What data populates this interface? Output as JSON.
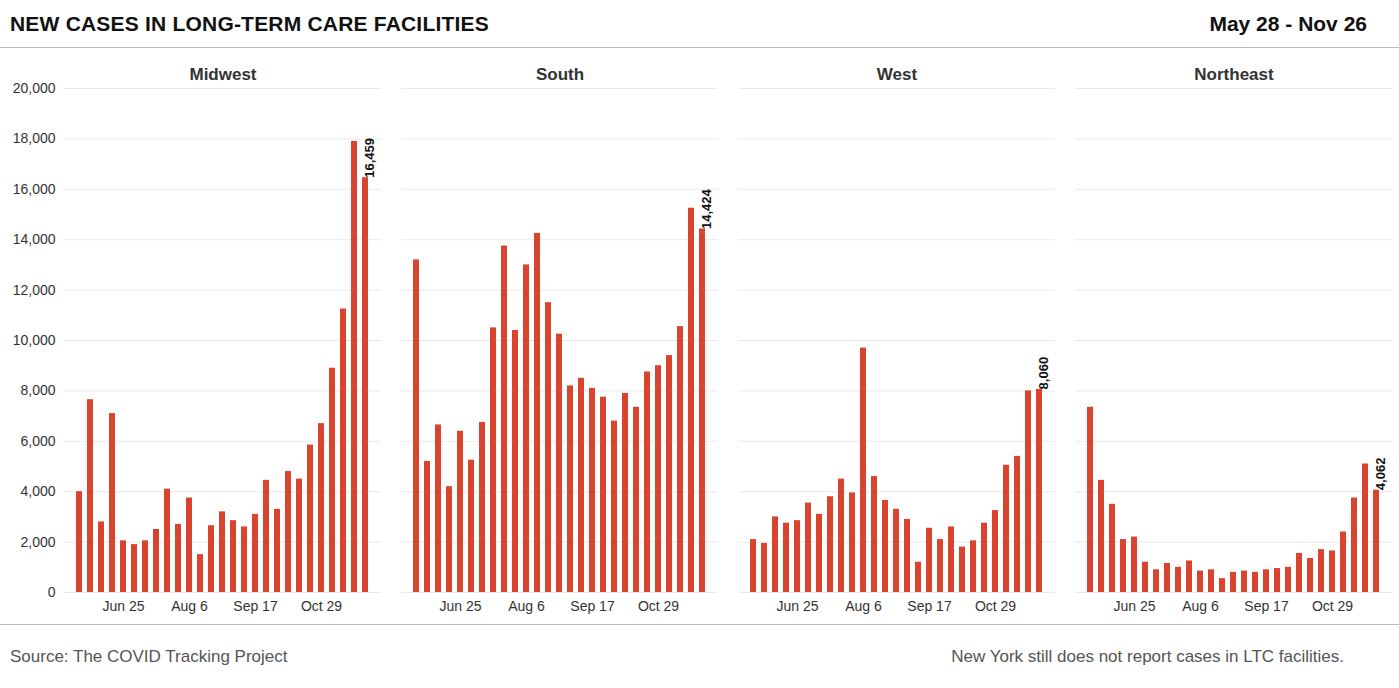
{
  "chart_data": {
    "type": "bar",
    "title": "NEW CASES IN LONG-TERM CARE FACILITIES",
    "subtitle": "May 28 - Nov 26",
    "source": "Source: The COVID Tracking Project",
    "note": "New York still does not report cases in LTC facilities.",
    "categories": [
      null,
      null,
      null,
      null,
      "Jun 25",
      null,
      null,
      null,
      null,
      null,
      "Aug 6",
      null,
      null,
      null,
      null,
      null,
      "Sep 17",
      null,
      null,
      null,
      null,
      null,
      "Oct 29",
      null,
      null,
      null,
      null
    ],
    "series": [
      {
        "name": "Midwest",
        "color": "#d9442e",
        "values": [
          4000,
          7650,
          2800,
          7100,
          2050,
          1900,
          2050,
          2500,
          4100,
          2700,
          3750,
          1500,
          2650,
          3200,
          2850,
          2600,
          3100,
          4450,
          3300,
          4800,
          4500,
          5850,
          6700,
          8900,
          11250,
          17900,
          16459
        ],
        "value_labels": [
          null,
          null,
          null,
          null,
          null,
          null,
          null,
          null,
          null,
          null,
          null,
          null,
          null,
          null,
          null,
          null,
          null,
          null,
          null,
          null,
          null,
          null,
          null,
          null,
          null,
          null,
          "16,459"
        ]
      },
      {
        "name": "South",
        "color": "#d9442e",
        "values": [
          13200,
          5200,
          6650,
          4200,
          6400,
          5250,
          6750,
          10500,
          13750,
          10400,
          13000,
          14250,
          11500,
          10250,
          8200,
          8500,
          8100,
          7750,
          6800,
          7900,
          7350,
          8750,
          9000,
          9400,
          10550,
          15250,
          14424
        ],
        "value_labels": [
          null,
          null,
          null,
          null,
          null,
          null,
          null,
          null,
          null,
          null,
          null,
          null,
          null,
          null,
          null,
          null,
          null,
          null,
          null,
          null,
          null,
          null,
          null,
          null,
          null,
          null,
          "14,424"
        ]
      },
      {
        "name": "West",
        "color": "#d9442e",
        "values": [
          2100,
          1950,
          3000,
          2750,
          2850,
          3550,
          3100,
          3800,
          4500,
          3950,
          9700,
          4600,
          3650,
          3300,
          2900,
          1200,
          2550,
          2100,
          2600,
          1800,
          2050,
          2750,
          3250,
          5050,
          5400,
          8000,
          8060
        ],
        "value_labels": [
          null,
          null,
          null,
          null,
          null,
          null,
          null,
          null,
          null,
          null,
          null,
          null,
          null,
          null,
          null,
          null,
          null,
          null,
          null,
          null,
          null,
          null,
          null,
          null,
          null,
          null,
          "8,060"
        ]
      },
      {
        "name": "Northeast",
        "color": "#d9442e",
        "values": [
          7350,
          4450,
          3500,
          2100,
          2200,
          1200,
          900,
          1150,
          1000,
          1250,
          850,
          900,
          550,
          800,
          850,
          800,
          900,
          950,
          1000,
          1550,
          1350,
          1700,
          1650,
          2400,
          3750,
          5100,
          4062
        ],
        "value_labels": [
          null,
          null,
          null,
          null,
          null,
          null,
          null,
          null,
          null,
          null,
          null,
          null,
          null,
          null,
          null,
          null,
          null,
          null,
          null,
          null,
          null,
          null,
          null,
          null,
          null,
          null,
          "4,062"
        ]
      }
    ],
    "ylim": [
      0,
      20000
    ],
    "yticks": [
      0,
      {
        "value": 2000,
        "label": "2,000"
      },
      {
        "value": 4000,
        "label": "4,000"
      },
      {
        "value": 6000,
        "label": "6,000"
      },
      {
        "value": 8000,
        "label": "8,000"
      },
      {
        "value": 10000,
        "label": "10,000"
      },
      {
        "value": 12000,
        "label": "12,000"
      },
      {
        "value": 14000,
        "label": "14,000"
      },
      {
        "value": 16000,
        "label": "16,000"
      },
      {
        "value": 18000,
        "label": "18,000"
      },
      {
        "value": 20000,
        "label": "20,000"
      }
    ],
    "grid": true,
    "data_labels": true
  }
}
